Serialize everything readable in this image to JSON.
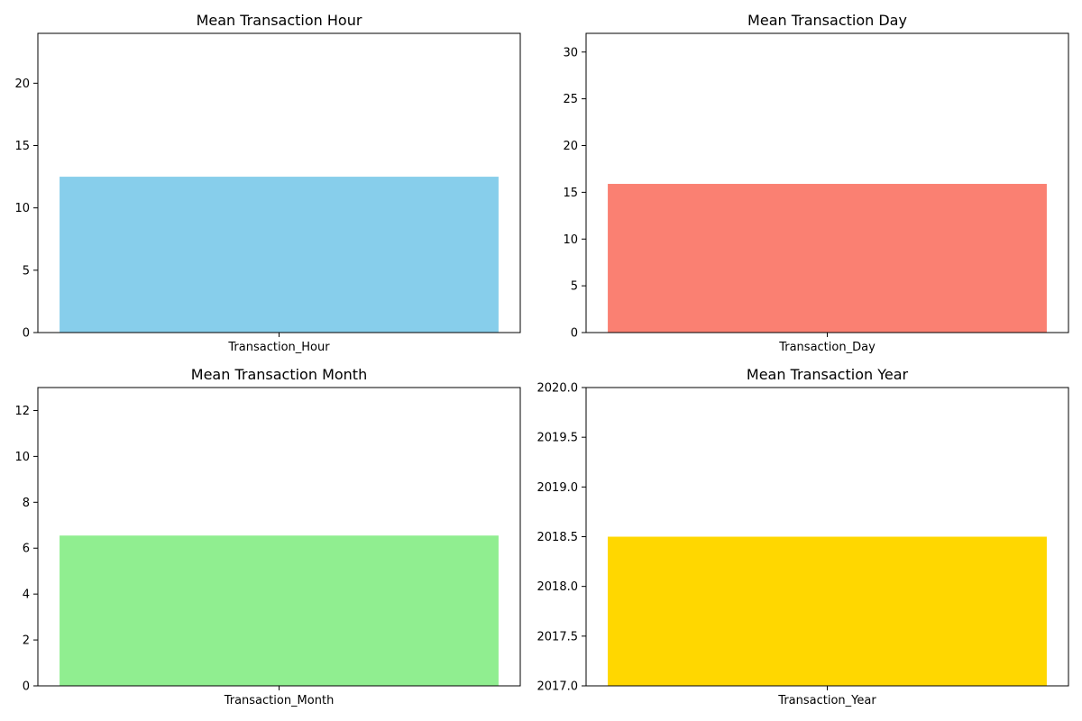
{
  "chart_data": [
    {
      "type": "bar",
      "title": "Mean Transaction Hour",
      "categories": [
        "Transaction_Hour"
      ],
      "values": [
        12.5
      ],
      "ylim": [
        0,
        24
      ],
      "yticks": [
        "0",
        "5",
        "10",
        "15",
        "20"
      ],
      "ytick_values": [
        0,
        5,
        10,
        15,
        20
      ],
      "color": "#87ceeb",
      "grid": false,
      "xlabel": "",
      "ylabel": ""
    },
    {
      "type": "bar",
      "title": "Mean Transaction Day",
      "categories": [
        "Transaction_Day"
      ],
      "values": [
        15.9
      ],
      "ylim": [
        0,
        32
      ],
      "yticks": [
        "0",
        "5",
        "10",
        "15",
        "20",
        "25",
        "30"
      ],
      "ytick_values": [
        0,
        5,
        10,
        15,
        20,
        25,
        30
      ],
      "color": "#fa8072",
      "grid": false,
      "xlabel": "",
      "ylabel": ""
    },
    {
      "type": "bar",
      "title": "Mean Transaction Month",
      "categories": [
        "Transaction_Month"
      ],
      "values": [
        6.55
      ],
      "ylim": [
        0,
        13
      ],
      "yticks": [
        "0",
        "2",
        "4",
        "6",
        "8",
        "10",
        "12"
      ],
      "ytick_values": [
        0,
        2,
        4,
        6,
        8,
        10,
        12
      ],
      "color": "#90ee90",
      "grid": false,
      "xlabel": "",
      "ylabel": ""
    },
    {
      "type": "bar",
      "title": "Mean Transaction Year",
      "categories": [
        "Transaction_Year"
      ],
      "values": [
        2018.5
      ],
      "ylim": [
        2017,
        2020
      ],
      "yticks": [
        "2017.0",
        "2017.5",
        "2018.0",
        "2018.5",
        "2019.0",
        "2019.5",
        "2020.0"
      ],
      "ytick_values": [
        2017,
        2017.5,
        2018,
        2018.5,
        2019,
        2019.5,
        2020
      ],
      "color": "#ffd700",
      "grid": false,
      "xlabel": "",
      "ylabel": ""
    }
  ]
}
